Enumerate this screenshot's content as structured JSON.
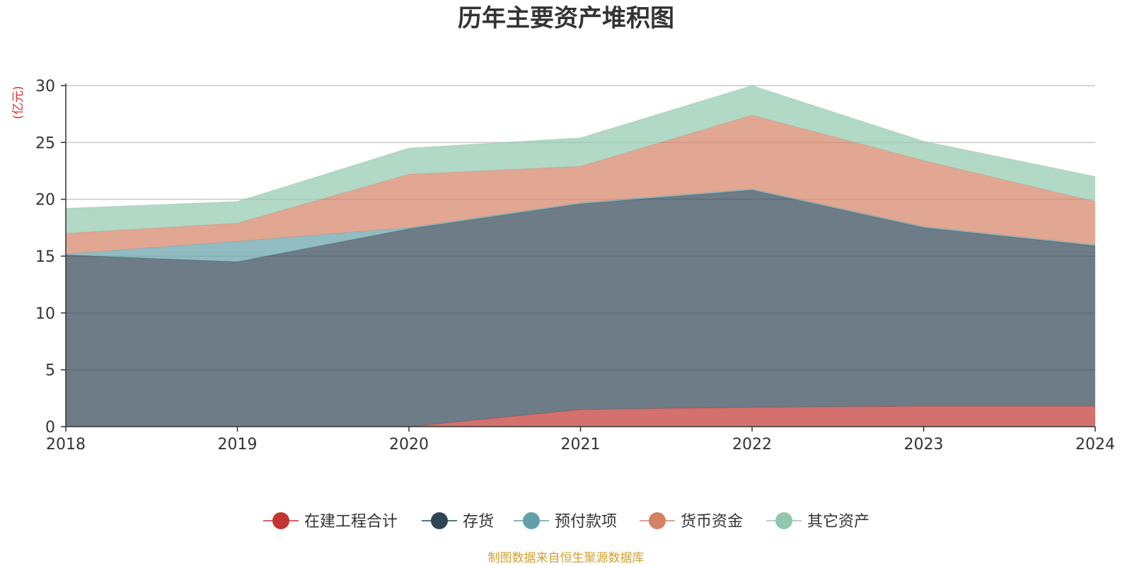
{
  "chart_data": {
    "type": "area",
    "stacked": true,
    "title": "历年主要资产堆积图",
    "unit": "(亿元)",
    "x": [
      "2018",
      "2019",
      "2020",
      "2021",
      "2022",
      "2023",
      "2024"
    ],
    "ylim": [
      0,
      30
    ],
    "yticks": [
      "0",
      "5",
      "10",
      "15",
      "20",
      "25",
      "30"
    ],
    "grid": true,
    "legend_position": "bottom",
    "series": [
      {
        "name": "在建工程合计",
        "color": "#c23531",
        "values": [
          0,
          0,
          0,
          1.5,
          1.7,
          1.8,
          1.8
        ]
      },
      {
        "name": "存货",
        "color": "#2f4554",
        "values": [
          15.1,
          14.5,
          17.4,
          18.1,
          19.1,
          15.7,
          14.1
        ]
      },
      {
        "name": "预付款项",
        "color": "#61a0a8",
        "values": [
          0.1,
          1.8,
          0.1,
          0.1,
          0.1,
          0.1,
          0.1
        ]
      },
      {
        "name": "货币资金",
        "color": "#d48265",
        "values": [
          1.8,
          1.6,
          4.7,
          3.2,
          6.5,
          5.8,
          3.8
        ]
      },
      {
        "name": "其它资产",
        "color": "#91c7ae",
        "values": [
          2.2,
          1.9,
          2.3,
          2.5,
          2.6,
          1.7,
          2.2
        ]
      }
    ]
  },
  "source_note": "制图数据来自恒生聚源数据库"
}
